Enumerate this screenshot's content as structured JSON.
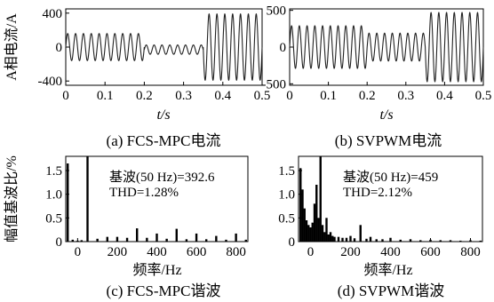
{
  "chart_data": [
    {
      "id": "a",
      "type": "line",
      "caption": "(a) FCS-MPC电流",
      "xlabel": "t/s",
      "ylabel": "A相电流/A",
      "xlim": [
        0,
        0.5
      ],
      "ylim": [
        -450,
        450
      ],
      "xticks": [
        0,
        0.1,
        0.2,
        0.3,
        0.4,
        0.5
      ],
      "xtick_labels": [
        "0",
        "0.1",
        "0.2",
        "0.3",
        "0.4",
        "0.5"
      ],
      "yticks": [
        -400,
        0,
        400
      ],
      "ytick_labels": [
        "-400",
        "0",
        "400"
      ],
      "frequency_hz": 50,
      "segments": [
        {
          "t_start": 0.0,
          "t_end": 0.2,
          "center": 0,
          "amplitude": 160
        },
        {
          "t_start": 0.2,
          "t_end": 0.35,
          "center": -30,
          "amplitude": 55
        },
        {
          "t_start": 0.35,
          "t_end": 0.5,
          "center": 0,
          "amplitude": 390
        }
      ]
    },
    {
      "id": "b",
      "type": "line",
      "caption": "(b) SVPWM电流",
      "xlabel": "t/s",
      "ylabel": "",
      "xlim": [
        0,
        0.5
      ],
      "ylim": [
        -520,
        520
      ],
      "xticks": [
        0,
        0.1,
        0.2,
        0.3,
        0.4,
        0.5
      ],
      "xtick_labels": [
        "0",
        "0.1",
        "0.2",
        "0.3",
        "0.4",
        "0.5"
      ],
      "yticks": [
        -500,
        0,
        500
      ],
      "ytick_labels": [
        "-500",
        "0",
        "500"
      ],
      "frequency_hz": 50,
      "segments": [
        {
          "t_start": 0.0,
          "t_end": 0.2,
          "center": 0,
          "amplitude": 290
        },
        {
          "t_start": 0.2,
          "t_end": 0.35,
          "center": 0,
          "amplitude": 190
        },
        {
          "t_start": 0.35,
          "t_end": 0.5,
          "center": 0,
          "amplitude": 470
        }
      ]
    },
    {
      "id": "c",
      "type": "bar",
      "caption": "(c) FCS-MPC谐波",
      "xlabel": "频率/Hz",
      "ylabel": "幅值基波比/%",
      "xlim": [
        -60,
        860
      ],
      "ylim": [
        0,
        1.8
      ],
      "xticks": [
        0,
        200,
        400,
        600,
        800
      ],
      "xtick_labels": [
        "0",
        "200",
        "400",
        "600",
        "800"
      ],
      "yticks": [
        0,
        0.5,
        1.0,
        1.5
      ],
      "ytick_labels": [
        "0",
        "0.5",
        "1.0",
        "1.5"
      ],
      "annotation_line1": "基波(50 Hz)=392.6",
      "annotation_line2": "THD=1.28%",
      "freqs": [
        -50,
        -25,
        0,
        20,
        50,
        100,
        150,
        200,
        250,
        300,
        350,
        400,
        450,
        500,
        550,
        600,
        650,
        700,
        750,
        800,
        850
      ],
      "values": [
        1.65,
        0.04,
        0.02,
        0.03,
        1.8,
        0.06,
        0.1,
        0.1,
        0.08,
        0.28,
        0.08,
        0.17,
        0.06,
        0.27,
        0.05,
        0.17,
        0.05,
        0.12,
        0.04,
        0.17,
        0.04
      ]
    },
    {
      "id": "d",
      "type": "bar",
      "caption": "(d) SVPWM谐波",
      "xlabel": "频率/Hz",
      "ylabel": "",
      "xlim": [
        -60,
        860
      ],
      "ylim": [
        0,
        1.8
      ],
      "xticks": [
        0,
        200,
        400,
        600,
        800
      ],
      "xtick_labels": [
        "0",
        "200",
        "400",
        "600",
        "800"
      ],
      "yticks": [
        0,
        0.5,
        1.0,
        1.5
      ],
      "ytick_labels": [
        "0",
        "0.5",
        "1.0",
        "1.5"
      ],
      "annotation_line1": "基波(50 Hz)=459",
      "annotation_line2": "THD=2.12%",
      "freqs": [
        -50,
        -40,
        -30,
        -20,
        -10,
        0,
        10,
        20,
        30,
        40,
        50,
        60,
        70,
        80,
        90,
        100,
        110,
        120,
        140,
        160,
        180,
        200,
        220,
        250,
        280,
        300,
        330,
        360,
        400,
        450,
        500,
        550,
        600,
        650,
        700,
        750,
        800,
        850
      ],
      "values": [
        1.55,
        1.1,
        0.7,
        0.45,
        0.35,
        0.3,
        0.4,
        0.8,
        1.2,
        0.5,
        1.8,
        0.35,
        0.2,
        0.5,
        0.15,
        0.2,
        0.12,
        0.1,
        0.1,
        0.08,
        0.08,
        0.12,
        0.07,
        0.35,
        0.06,
        0.1,
        0.05,
        0.05,
        0.08,
        0.04,
        0.05,
        0.03,
        0.04,
        0.03,
        0.03,
        0.02,
        0.03,
        0.02
      ]
    }
  ]
}
